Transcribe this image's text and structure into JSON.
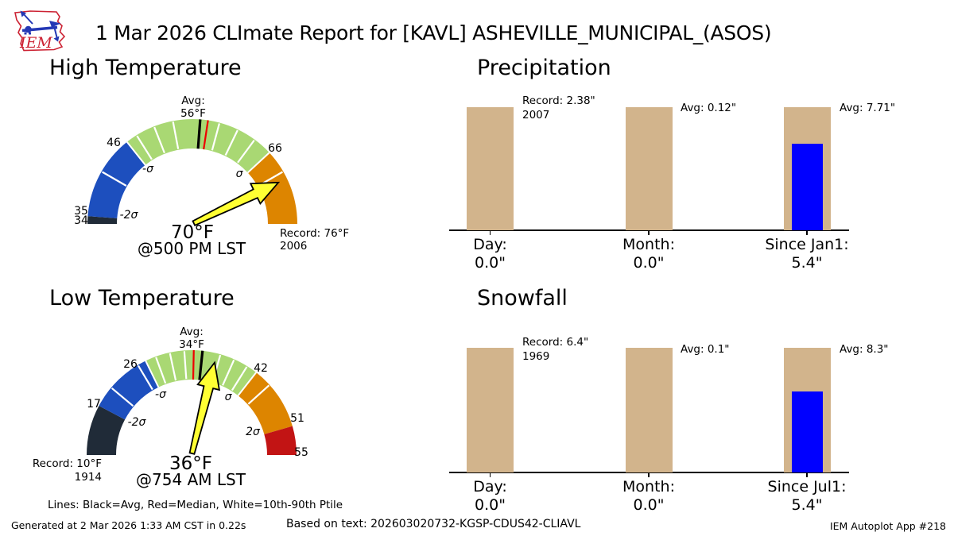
{
  "header": {
    "title": "1 Mar 2026 CLImate Report for [KAVL] ASHEVILLE_MUNICIPAL_(ASOS)",
    "logo_text": "IEM"
  },
  "legend_note": "Lines: Black=Avg, Red=Median, White=10th-90th Ptile",
  "footer": {
    "generated": "Generated at 2 Mar 2026 1:33 AM CST in 0.22s",
    "based_on": "Based on text: 202603020732-KGSP-CDUS42-CLIAVL",
    "app": "IEM Autoplot App #218"
  },
  "colors": {
    "climo_bar": "#d2b48c",
    "obs_bar": "#0000ff",
    "below_record": "#202b38",
    "minus2sigma": "#1d4fbe",
    "normal_band": "#a9d873",
    "plus_sigma": "#dd8500",
    "plus2sigma": "#c21414",
    "arrow": "#ffff33",
    "avg_line": "#000000",
    "median_line": "#ee0000",
    "ptile_tick": "#ffffff"
  },
  "chart_data": [
    {
      "id": "high_temperature",
      "type": "gauge",
      "title": "High Temperature",
      "units": "°F",
      "min": 34,
      "max": 76,
      "value": 70,
      "value_label": "70°F",
      "time_label": "@500 PM LST",
      "avg": 56,
      "median": 57,
      "avg_label": [
        "Avg:",
        "56°F"
      ],
      "record_label": [
        "Record: 76°F",
        "2006"
      ],
      "segments": [
        {
          "from": 34,
          "to": 35,
          "color": "#202b38"
        },
        {
          "from": 35,
          "to": 46,
          "color": "#1d4fbe"
        },
        {
          "from": 46,
          "to": 66,
          "color": "#a9d873"
        },
        {
          "from": 66,
          "to": 76,
          "color": "#dd8500"
        }
      ],
      "separators": [
        46,
        66
      ],
      "white_ticks": [
        41,
        47.5,
        50,
        52.5,
        58.5,
        61,
        63.5,
        69
      ],
      "tick_labels": {
        "t34": "34",
        "t35": "35",
        "t46": "46",
        "t66": "66"
      },
      "sigma_labels": {
        "m2": "-2σ",
        "m1": "-σ",
        "p1": "σ"
      }
    },
    {
      "id": "precipitation",
      "type": "bar",
      "title": "Precipitation",
      "categories": [
        "Day:",
        "Month:",
        "Since Jan1:"
      ],
      "values": [
        0.0,
        0.0,
        5.4
      ],
      "value_labels": [
        "0.0\"",
        "0.0\"",
        "5.4\""
      ],
      "climo_refs": [
        2.38,
        0.12,
        7.71
      ],
      "annotations": [
        [
          "Record: 2.38\"",
          "2007"
        ],
        [
          "Avg: 0.12\""
        ],
        [
          "Avg: 7.71\""
        ]
      ]
    },
    {
      "id": "low_temperature",
      "type": "gauge",
      "title": "Low Temperature",
      "units": "°F",
      "min": 10,
      "max": 55,
      "value": 36,
      "value_label": "36°F",
      "time_label": "@754 AM LST",
      "avg": 34,
      "median": 32.8,
      "avg_label": [
        "Avg:",
        "34°F"
      ],
      "record_label": [
        "Record: 10°F",
        "1914"
      ],
      "segments": [
        {
          "from": 10,
          "to": 17,
          "color": "#202b38"
        },
        {
          "from": 17,
          "to": 26,
          "color": "#1d4fbe"
        },
        {
          "from": 26,
          "to": 42,
          "color": "#a9d873"
        },
        {
          "from": 42,
          "to": 51,
          "color": "#dd8500"
        },
        {
          "from": 51,
          "to": 55,
          "color": "#c21414"
        }
      ],
      "separators": [
        26,
        42
      ],
      "white_ticks": [
        20,
        24.8,
        27.5,
        29.5,
        31.5,
        36.5,
        38.5,
        40.5,
        44.5
      ],
      "tick_labels": {
        "t17": "17",
        "t26": "26",
        "t42": "42",
        "t51": "51",
        "t55": "55"
      },
      "sigma_labels": {
        "m2": "-2σ",
        "m1": "-σ",
        "p1": "σ",
        "p2": "2σ"
      }
    },
    {
      "id": "snowfall",
      "type": "bar",
      "title": "Snowfall",
      "categories": [
        "Day:",
        "Month:",
        "Since Jul1:"
      ],
      "values": [
        0.0,
        0.0,
        5.4
      ],
      "value_labels": [
        "0.0\"",
        "0.0\"",
        "5.4\""
      ],
      "climo_refs": [
        6.4,
        0.1,
        8.3
      ],
      "annotations": [
        [
          "Record: 6.4\"",
          "1969"
        ],
        [
          "Avg: 0.1\""
        ],
        [
          "Avg: 8.3\""
        ]
      ]
    }
  ]
}
